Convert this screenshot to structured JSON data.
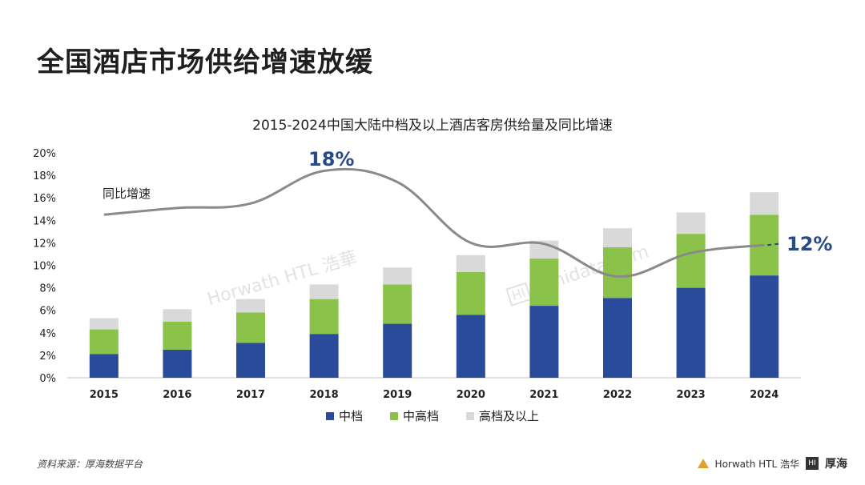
{
  "page_title": "全国酒店市场供给增速放缓",
  "source_note": "资料来源：厚海数据平台",
  "logos": {
    "horwath": "Horwath HTL 浩华",
    "hohi_mark": "HI",
    "hohi": "厚海"
  },
  "watermarks": {
    "horwath": "Horwath HTL 浩華",
    "hohidata": "hohidata.com",
    "hohi_mark": "HI"
  },
  "colors": {
    "mid": "#2a4a9a",
    "upper_mid": "#8bc34a",
    "upscale": "#d9d9d9",
    "line": "#8a8a8a",
    "label": "#2a4a86"
  },
  "chart_data": {
    "type": "bar",
    "title": "2015-2024中国大陆中档及以上酒店客房供给量及同比增速",
    "categories": [
      "2015",
      "2016",
      "2017",
      "2018",
      "2019",
      "2020",
      "2021",
      "2022",
      "2023",
      "2024"
    ],
    "series": [
      {
        "name": "中档",
        "values": [
          2.1,
          2.5,
          3.1,
          3.9,
          4.8,
          5.6,
          6.4,
          7.1,
          8.0,
          9.1
        ]
      },
      {
        "name": "中高档",
        "values": [
          2.2,
          2.5,
          2.7,
          3.1,
          3.5,
          3.8,
          4.2,
          4.5,
          4.8,
          5.4
        ]
      },
      {
        "name": "高档及以上",
        "values": [
          1.0,
          1.1,
          1.2,
          1.3,
          1.5,
          1.5,
          1.6,
          1.7,
          1.9,
          2.0
        ]
      }
    ],
    "line": {
      "label": "同比增速",
      "values": [
        14.5,
        15.1,
        15.5,
        18.4,
        17.4,
        12.0,
        11.9,
        9.0,
        11.1,
        11.8
      ],
      "annotations": {
        "peak": "18%",
        "end": "12%"
      }
    },
    "y_ticks": [
      "0%",
      "2%",
      "4%",
      "6%",
      "8%",
      "10%",
      "12%",
      "14%",
      "16%",
      "18%",
      "20%"
    ],
    "ylim": [
      0,
      20
    ],
    "grid": false,
    "legend_position": "bottom"
  }
}
